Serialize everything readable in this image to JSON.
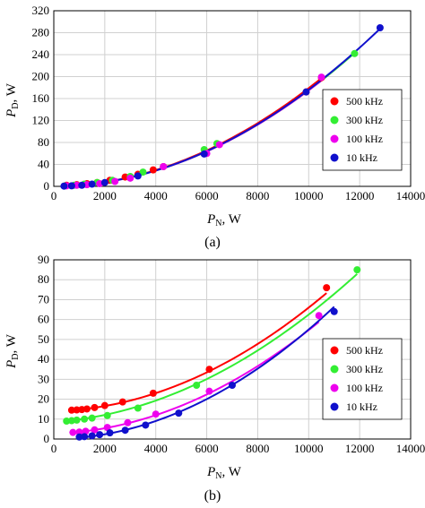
{
  "chart_data": [
    {
      "type": "scatter",
      "panel": "(a)",
      "xlabel_main": "P",
      "xlabel_sub": "N",
      "xlabel_unit": ", W",
      "ylabel_main": "P",
      "ylabel_sub": "D",
      "ylabel_unit": ", W",
      "xlim": [
        0,
        14000
      ],
      "ylim": [
        0,
        320
      ],
      "xticks": [
        0,
        2000,
        4000,
        6000,
        8000,
        10000,
        12000,
        14000
      ],
      "yticks": [
        0,
        40,
        80,
        120,
        160,
        200,
        240,
        280,
        320
      ],
      "grid": true,
      "legend_position": "right",
      "series": [
        {
          "name": "500 kHz",
          "color": "#ff0000",
          "x": [
            500,
            900,
            1300,
            1700,
            2200,
            2800,
            3300,
            3900,
            4300,
            9900,
            10500
          ],
          "y": [
            2,
            3,
            5,
            7,
            11,
            17,
            22,
            30,
            36,
            172,
            198
          ],
          "fit_a": 1.75e-06,
          "fit_b": 0.0004,
          "fit_c": 0
        },
        {
          "name": "300 kHz",
          "color": "#33ee33",
          "x": [
            450,
            800,
            1200,
            1700,
            2300,
            3000,
            3500,
            5900,
            6400,
            11800
          ],
          "y": [
            1,
            2,
            4,
            7,
            11,
            18,
            26,
            67,
            78,
            242
          ],
          "fit_a": 1.72e-06,
          "fit_b": 0.0003,
          "fit_c": 0
        },
        {
          "name": "100 kHz",
          "color": "#ee00ee",
          "x": [
            500,
            900,
            1300,
            1800,
            2400,
            3000,
            4300,
            6000,
            6500,
            10500
          ],
          "y": [
            1,
            2,
            3,
            5,
            9,
            15,
            36,
            60,
            76,
            199
          ],
          "fit_a": 1.72e-06,
          "fit_b": 0.0003,
          "fit_c": 0
        },
        {
          "name": "10 kHz",
          "color": "#1010cc",
          "x": [
            400,
            700,
            1100,
            1500,
            2000,
            3300,
            5900,
            9900,
            12800
          ],
          "y": [
            0.5,
            1,
            2,
            4,
            7,
            19,
            59,
            172,
            289
          ],
          "fit_a": 1.73e-06,
          "fit_b": 0.0003,
          "fit_c": 0
        }
      ]
    },
    {
      "type": "scatter",
      "panel": "(b)",
      "xlabel_main": "P",
      "xlabel_sub": "N",
      "xlabel_unit": ", W",
      "ylabel_main": "P",
      "ylabel_sub": "D",
      "ylabel_unit": ", W",
      "xlim": [
        0,
        14000
      ],
      "ylim": [
        0,
        90
      ],
      "xticks": [
        0,
        2000,
        4000,
        6000,
        8000,
        10000,
        12000,
        14000
      ],
      "yticks": [
        0,
        10,
        20,
        30,
        40,
        50,
        60,
        70,
        80,
        90
      ],
      "grid": true,
      "legend_position": "right",
      "series": [
        {
          "name": "500 kHz",
          "color": "#ff0000",
          "x": [
            700,
            900,
            1100,
            1300,
            1600,
            2000,
            2700,
            3900,
            6100,
            10700
          ],
          "y": [
            14.5,
            14.6,
            14.8,
            15.1,
            15.8,
            16.8,
            18.6,
            23,
            35,
            76
          ],
          "fit_a": 4.9e-07,
          "fit_b": 0.0003,
          "fit_c": 14.0
        },
        {
          "name": "300 kHz",
          "color": "#33ee33",
          "x": [
            500,
            700,
            900,
            1200,
            1500,
            2100,
            3300,
            5600,
            11900
          ],
          "y": [
            9,
            9.2,
            9.5,
            10,
            10.5,
            11.8,
            15.5,
            27,
            85
          ],
          "fit_a": 4.5e-07,
          "fit_b": 0.0009,
          "fit_c": 8.5
        },
        {
          "name": "100 kHz",
          "color": "#ee00ee",
          "x": [
            750,
            1000,
            1250,
            1600,
            2100,
            2900,
            4000,
            6100,
            10400
          ],
          "y": [
            3.3,
            3.5,
            3.9,
            4.6,
            5.8,
            8.2,
            12.5,
            24,
            62
          ],
          "fit_a": 4.8e-07,
          "fit_b": 0.0004,
          "fit_c": 2.7
        },
        {
          "name": "10 kHz",
          "color": "#1010cc",
          "x": [
            1000,
            1200,
            1500,
            1800,
            2200,
            2800,
            3600,
            4900,
            7000,
            11000
          ],
          "y": [
            1,
            1.2,
            1.6,
            2.2,
            3.1,
            4.4,
            7,
            13,
            27,
            64
          ],
          "fit_a": 5.4e-07,
          "fit_b": 0.0001,
          "fit_c": 0
        }
      ]
    }
  ]
}
